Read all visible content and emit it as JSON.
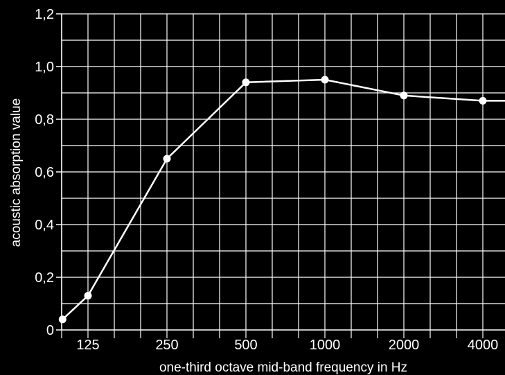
{
  "chart_data": {
    "type": "line",
    "title": "",
    "xlabel": "one-third octave mid-band frequency in Hz",
    "ylabel": "acoustic absorption value",
    "x_ticks": [
      "125",
      "250",
      "500",
      "1000",
      "2000",
      "4000"
    ],
    "y_ticks": [
      "0",
      "0,2",
      "0,4",
      "0,6",
      "0,8",
      "1,0",
      "1,2"
    ],
    "ylim": [
      0,
      1.2
    ],
    "grid": true,
    "colors": {
      "background": "#000000",
      "line": "#ffffff",
      "grid": "#ffffff"
    },
    "series": [
      {
        "x": [
          100,
          125,
          250,
          500,
          1000,
          2000,
          4000,
          5000
        ],
        "y": [
          0.04,
          0.13,
          0.65,
          0.94,
          0.95,
          0.89,
          0.87,
          0.87
        ]
      }
    ]
  }
}
